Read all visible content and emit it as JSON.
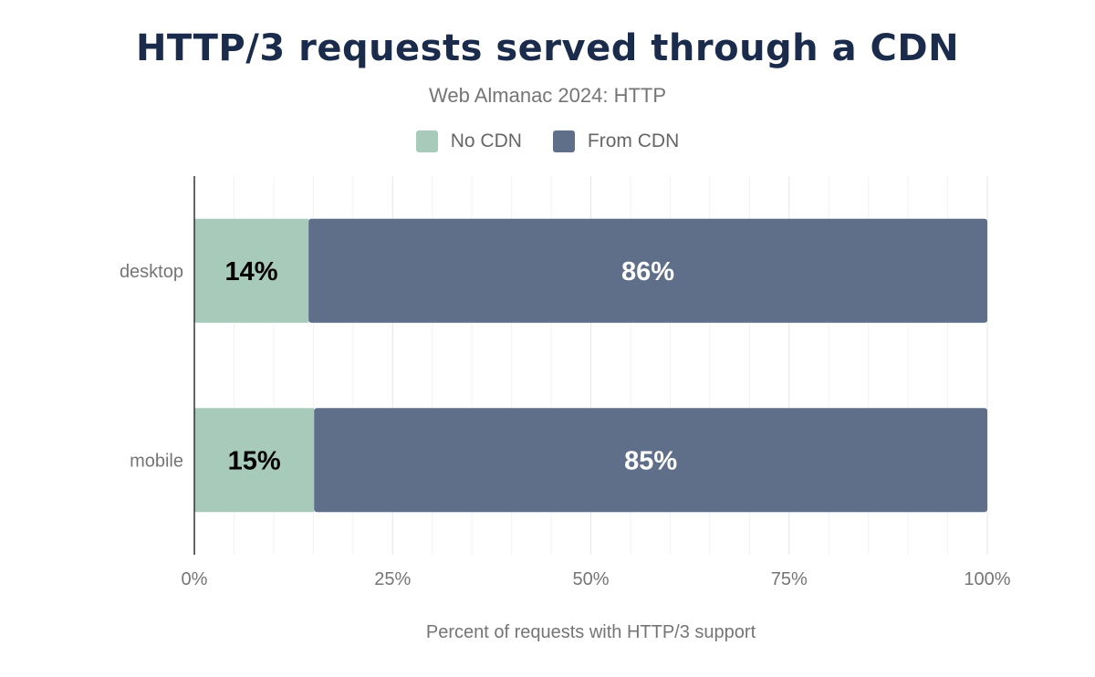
{
  "chart_data": {
    "type": "bar",
    "orientation": "horizontal",
    "stacked": true,
    "title": "HTTP/3 requests served through a CDN",
    "subtitle": "Web Almanac 2024: HTTP",
    "xlabel": "Percent of requests with HTTP/3 support",
    "ylabel": "",
    "categories": [
      "desktop",
      "mobile"
    ],
    "series": [
      {
        "name": "No CDN",
        "values": [
          14.4,
          15.1
        ],
        "labels": [
          "14%",
          "15%"
        ],
        "color": "#a8cabb",
        "label_color": "#000000"
      },
      {
        "name": "From CDN",
        "values": [
          85.6,
          84.9
        ],
        "labels": [
          "86%",
          "85%"
        ],
        "color": "#5f6f8a",
        "label_color": "#ffffff"
      }
    ],
    "xlim": [
      0,
      100
    ],
    "xticks": [
      "0%",
      "25%",
      "50%",
      "75%",
      "100%"
    ],
    "grid": true,
    "legend_position": "top"
  }
}
